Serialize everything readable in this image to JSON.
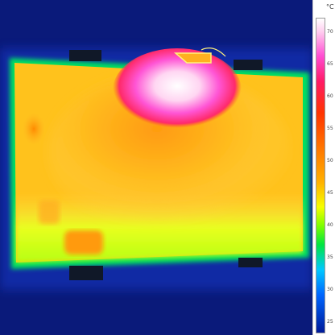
{
  "image": {
    "subject": "thermal image of a rectangular panel",
    "palette": "ironbow-rainbow",
    "colors": {
      "background": "#0a1a7a",
      "cold": "#1030c0",
      "cool": "#00e640",
      "warm": "#ffc000",
      "hot": "#ff4dd2",
      "hottest": "#ffffff"
    }
  },
  "scale": {
    "unit": "°C",
    "ticks": [
      "70",
      "65",
      "60",
      "55",
      "50",
      "45",
      "40",
      "35",
      "30",
      "25"
    ]
  }
}
